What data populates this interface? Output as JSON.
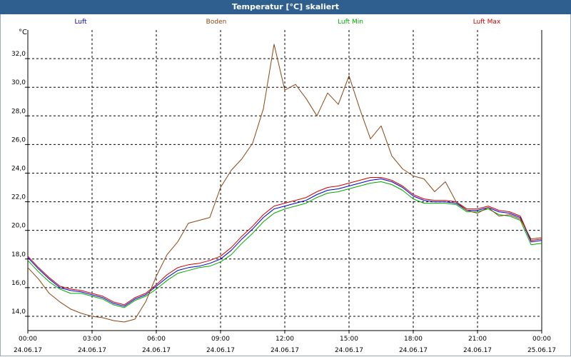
{
  "window": {
    "title": "Temperatur [°C] skaliert"
  },
  "chart_data": {
    "type": "line",
    "title": "Temperatur [°C] skaliert",
    "ylabel": "°C",
    "xlabel": "",
    "grid": true,
    "ylim": [
      13.0,
      34.0
    ],
    "xlim": [
      0,
      24
    ],
    "y_ticks": [
      14,
      16,
      18,
      20,
      22,
      24,
      26,
      28,
      30,
      32
    ],
    "y_tick_labels": [
      "14,0",
      "16,0",
      "18,0",
      "20,0",
      "22,0",
      "24,0",
      "26,0",
      "28,0",
      "30,0",
      "32,0"
    ],
    "x_ticks": [
      {
        "time": "00:00",
        "date": "24.06.17",
        "h": 0
      },
      {
        "time": "03:00",
        "date": "24.06.17",
        "h": 3
      },
      {
        "time": "06:00",
        "date": "24.06.17",
        "h": 6
      },
      {
        "time": "09:00",
        "date": "24.06.17",
        "h": 9
      },
      {
        "time": "12:00",
        "date": "24.06.17",
        "h": 12
      },
      {
        "time": "15:00",
        "date": "24.06.17",
        "h": 15
      },
      {
        "time": "18:00",
        "date": "24.06.17",
        "h": 18
      },
      {
        "time": "21:00",
        "date": "24.06.17",
        "h": 21
      },
      {
        "time": "00:00",
        "date": "25.06.17",
        "h": 24
      }
    ],
    "series": [
      {
        "name": "Luft",
        "color": "#0000cc",
        "x": [
          0,
          0.5,
          1,
          1.5,
          2,
          2.5,
          3,
          3.5,
          4,
          4.5,
          5,
          5.5,
          6,
          6.5,
          7,
          7.5,
          8,
          8.5,
          9,
          9.5,
          10,
          10.5,
          11,
          11.5,
          12,
          12.5,
          13,
          13.5,
          14,
          14.5,
          15,
          15.5,
          16,
          16.5,
          17,
          17.5,
          18,
          18.5,
          19,
          19.5,
          20,
          20.5,
          21,
          21.5,
          22,
          22.5,
          23,
          23.5,
          24
        ],
        "values": [
          18.1,
          17.3,
          16.6,
          16.0,
          15.8,
          15.7,
          15.5,
          15.3,
          14.9,
          14.7,
          15.2,
          15.5,
          16.1,
          16.7,
          17.2,
          17.4,
          17.5,
          17.7,
          18.0,
          18.6,
          19.4,
          20.1,
          20.9,
          21.5,
          21.7,
          21.9,
          22.1,
          22.5,
          22.8,
          22.9,
          23.1,
          23.3,
          23.5,
          23.6,
          23.4,
          23.0,
          22.4,
          22.1,
          22.0,
          22.0,
          21.9,
          21.4,
          21.4,
          21.6,
          21.3,
          21.2,
          20.9,
          19.2,
          19.3
        ]
      },
      {
        "name": "Boden",
        "color": "#8b4513",
        "x": [
          0,
          0.5,
          1,
          1.5,
          2,
          2.5,
          3,
          3.5,
          4,
          4.5,
          5,
          5.5,
          6,
          6.5,
          7,
          7.5,
          8,
          8.5,
          9,
          9.5,
          10,
          10.5,
          11,
          11.5,
          12,
          12.5,
          13,
          13.5,
          14,
          14.5,
          15,
          15.5,
          16,
          16.5,
          17,
          17.5,
          18,
          18.5,
          19,
          19.5,
          20,
          20.5,
          21,
          21.5,
          22,
          22.5,
          23,
          23.5,
          24
        ],
        "values": [
          17.4,
          16.6,
          15.6,
          15.0,
          14.5,
          14.2,
          14.0,
          13.9,
          13.7,
          13.6,
          13.8,
          15.0,
          16.8,
          18.3,
          19.2,
          20.5,
          20.7,
          20.9,
          23.0,
          24.2,
          25.0,
          26.1,
          28.5,
          33.0,
          29.8,
          30.2,
          29.2,
          28.0,
          29.6,
          28.8,
          30.8,
          28.5,
          26.4,
          27.3,
          25.2,
          24.3,
          23.8,
          23.6,
          22.7,
          23.4,
          22.0,
          21.4,
          21.2,
          21.6,
          21.0,
          21.1,
          20.8,
          19.4,
          19.5
        ]
      },
      {
        "name": "Luft Min",
        "color": "#00aa00",
        "x": [
          0,
          0.5,
          1,
          1.5,
          2,
          2.5,
          3,
          3.5,
          4,
          4.5,
          5,
          5.5,
          6,
          6.5,
          7,
          7.5,
          8,
          8.5,
          9,
          9.5,
          10,
          10.5,
          11,
          11.5,
          12,
          12.5,
          13,
          13.5,
          14,
          14.5,
          15,
          15.5,
          16,
          16.5,
          17,
          17.5,
          18,
          18.5,
          19,
          19.5,
          20,
          20.5,
          21,
          21.5,
          22,
          22.5,
          23,
          23.5,
          24
        ],
        "values": [
          17.9,
          17.1,
          16.4,
          15.9,
          15.6,
          15.6,
          15.4,
          15.2,
          14.8,
          14.6,
          15.1,
          15.4,
          15.9,
          16.5,
          17.0,
          17.2,
          17.4,
          17.5,
          17.8,
          18.3,
          19.1,
          19.8,
          20.6,
          21.2,
          21.5,
          21.7,
          21.9,
          22.3,
          22.6,
          22.7,
          22.9,
          23.1,
          23.3,
          23.4,
          23.2,
          22.8,
          22.2,
          21.9,
          21.9,
          21.9,
          21.8,
          21.3,
          21.3,
          21.5,
          21.1,
          21.0,
          20.7,
          19.0,
          19.1
        ]
      },
      {
        "name": "Luft Max",
        "color": "#cc0000",
        "x": [
          0,
          0.5,
          1,
          1.5,
          2,
          2.5,
          3,
          3.5,
          4,
          4.5,
          5,
          5.5,
          6,
          6.5,
          7,
          7.5,
          8,
          8.5,
          9,
          9.5,
          10,
          10.5,
          11,
          11.5,
          12,
          12.5,
          13,
          13.5,
          14,
          14.5,
          15,
          15.5,
          16,
          16.5,
          17,
          17.5,
          18,
          18.5,
          19,
          19.5,
          20,
          20.5,
          21,
          21.5,
          22,
          22.5,
          23,
          23.5,
          24
        ],
        "values": [
          18.2,
          17.4,
          16.7,
          16.1,
          15.9,
          15.8,
          15.6,
          15.4,
          15.0,
          14.8,
          15.3,
          15.6,
          16.2,
          16.9,
          17.4,
          17.6,
          17.7,
          17.9,
          18.2,
          18.8,
          19.6,
          20.3,
          21.1,
          21.7,
          21.9,
          22.1,
          22.3,
          22.7,
          23.0,
          23.1,
          23.3,
          23.5,
          23.7,
          23.7,
          23.5,
          23.1,
          22.5,
          22.2,
          22.1,
          22.1,
          22.0,
          21.5,
          21.5,
          21.7,
          21.4,
          21.3,
          21.0,
          19.3,
          19.4
        ]
      }
    ]
  }
}
